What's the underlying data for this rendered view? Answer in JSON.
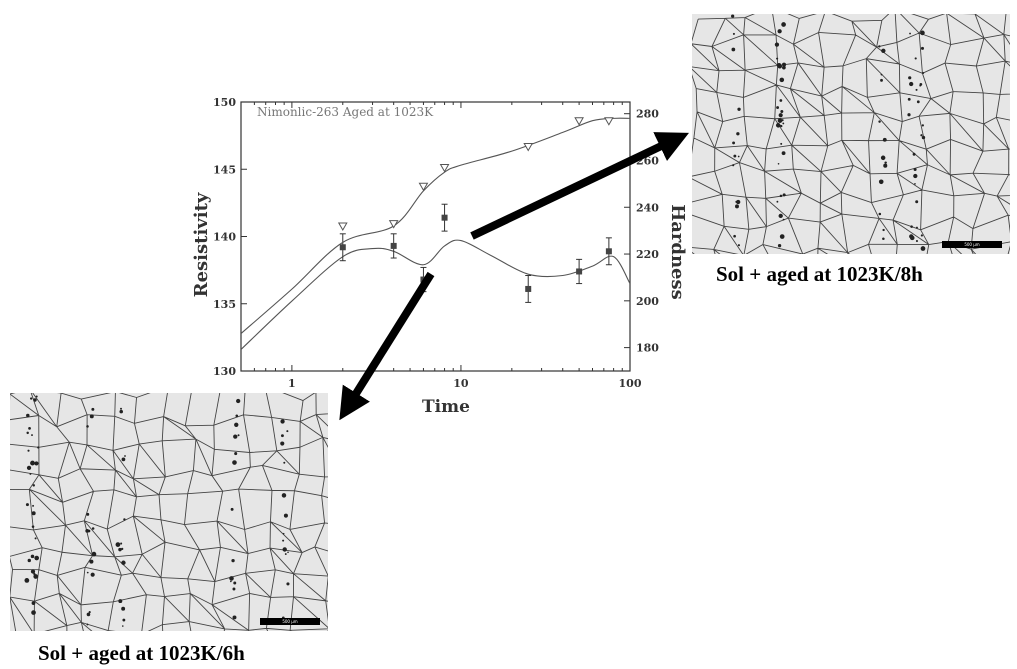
{
  "chart_data": {
    "type": "scatter",
    "title": "Nimonlic-263 Aged at 1023K",
    "xlabel": "Time",
    "ylabel": "Resistivity",
    "y2label": "Hardness",
    "xscale": "log",
    "xlim": [
      0.5,
      100
    ],
    "ylim": [
      130,
      150
    ],
    "y2lim": [
      170,
      285
    ],
    "x_ticks": [
      "1",
      "10",
      "100"
    ],
    "y_ticks": [
      "130",
      "135",
      "140",
      "145",
      "150"
    ],
    "y2_ticks": [
      "180",
      "200",
      "220",
      "240",
      "260",
      "280"
    ],
    "grid": false,
    "series": [
      {
        "marker": "filled-square",
        "axis": "left",
        "x": [
          2,
          4,
          6,
          8,
          25,
          50,
          75
        ],
        "y": [
          139.2,
          139.3,
          136.8,
          141.4,
          136.1,
          137.4,
          138.9
        ],
        "error": [
          1.0,
          0.9,
          0.9,
          1.0,
          1.0,
          0.9,
          1.0
        ],
        "fit_x": [
          0.5,
          1,
          2,
          3,
          4,
          6,
          8,
          10,
          15,
          25,
          40,
          60,
          80,
          100
        ],
        "fit_y": [
          131.6,
          135.2,
          138.5,
          139.1,
          138.9,
          137.9,
          139.3,
          139.7,
          138.6,
          137.2,
          137.1,
          137.8,
          138.5,
          136.5
        ]
      },
      {
        "marker": "open-triangle-down",
        "axis": "right",
        "x": [
          2,
          4,
          6,
          8,
          25,
          50,
          75
        ],
        "y": [
          232,
          233,
          249,
          257,
          266,
          277,
          277
        ],
        "fit_x": [
          0.5,
          1,
          2,
          4,
          6,
          8,
          10,
          20,
          40,
          60,
          80,
          100
        ],
        "fit_y": [
          186,
          205,
          225,
          232,
          247,
          255,
          258,
          264,
          272,
          277,
          278,
          278
        ]
      }
    ]
  },
  "images": {
    "top_micrograph": {
      "scale_label": "500 µm"
    },
    "bottom_micrograph": {
      "scale_label": "500 µm"
    }
  },
  "captions": {
    "top": "Sol + aged at 1023K/8h",
    "bottom": "Sol + aged at 1023K/6h"
  },
  "colors": {
    "axis": "#333333",
    "title": "#777777",
    "arrow": "#000000"
  }
}
